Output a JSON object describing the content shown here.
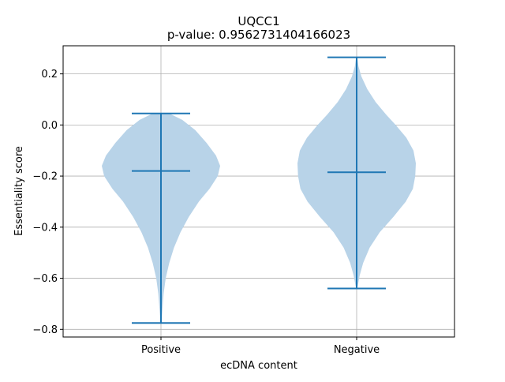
{
  "chart_data": {
    "type": "violin",
    "title": "UQCC1",
    "subtitle": "p-value: 0.9562731404166023",
    "xlabel": "ecDNA content",
    "ylabel": "Essentiality score",
    "categories": [
      "Positive",
      "Negative"
    ],
    "ylim": [
      -0.83,
      0.31
    ],
    "yticks": [
      -0.8,
      -0.6,
      -0.4,
      -0.2,
      0.0,
      0.2
    ],
    "ytick_labels": [
      "−0.8",
      "−0.6",
      "−0.4",
      "−0.2",
      "0.0",
      "0.2"
    ],
    "grid": true,
    "colors": {
      "body": "#b8d3e8",
      "lines": "#1f77b4",
      "grid": "#b0b0b0"
    },
    "violins": [
      {
        "category": "Positive",
        "min": -0.775,
        "median": -0.18,
        "max": 0.045,
        "density": [
          [
            0.045,
            0.14
          ],
          [
            0.02,
            0.36
          ],
          [
            -0.02,
            0.58
          ],
          [
            -0.07,
            0.77
          ],
          [
            -0.12,
            0.93
          ],
          [
            -0.16,
            1.0
          ],
          [
            -0.2,
            0.96
          ],
          [
            -0.25,
            0.82
          ],
          [
            -0.3,
            0.64
          ],
          [
            -0.36,
            0.47
          ],
          [
            -0.42,
            0.33
          ],
          [
            -0.48,
            0.22
          ],
          [
            -0.54,
            0.14
          ],
          [
            -0.6,
            0.08
          ],
          [
            -0.66,
            0.045
          ],
          [
            -0.72,
            0.025
          ],
          [
            -0.775,
            0.01
          ]
        ]
      },
      {
        "category": "Negative",
        "min": -0.64,
        "median": -0.185,
        "max": 0.265,
        "density": [
          [
            0.265,
            0.01
          ],
          [
            0.23,
            0.03
          ],
          [
            0.19,
            0.08
          ],
          [
            0.14,
            0.18
          ],
          [
            0.09,
            0.32
          ],
          [
            0.04,
            0.5
          ],
          [
            0.0,
            0.66
          ],
          [
            -0.05,
            0.84
          ],
          [
            -0.1,
            0.96
          ],
          [
            -0.15,
            1.0
          ],
          [
            -0.2,
            0.99
          ],
          [
            -0.25,
            0.95
          ],
          [
            -0.3,
            0.83
          ],
          [
            -0.36,
            0.62
          ],
          [
            -0.42,
            0.39
          ],
          [
            -0.48,
            0.22
          ],
          [
            -0.54,
            0.11
          ],
          [
            -0.59,
            0.05
          ],
          [
            -0.64,
            0.01
          ]
        ]
      }
    ]
  }
}
